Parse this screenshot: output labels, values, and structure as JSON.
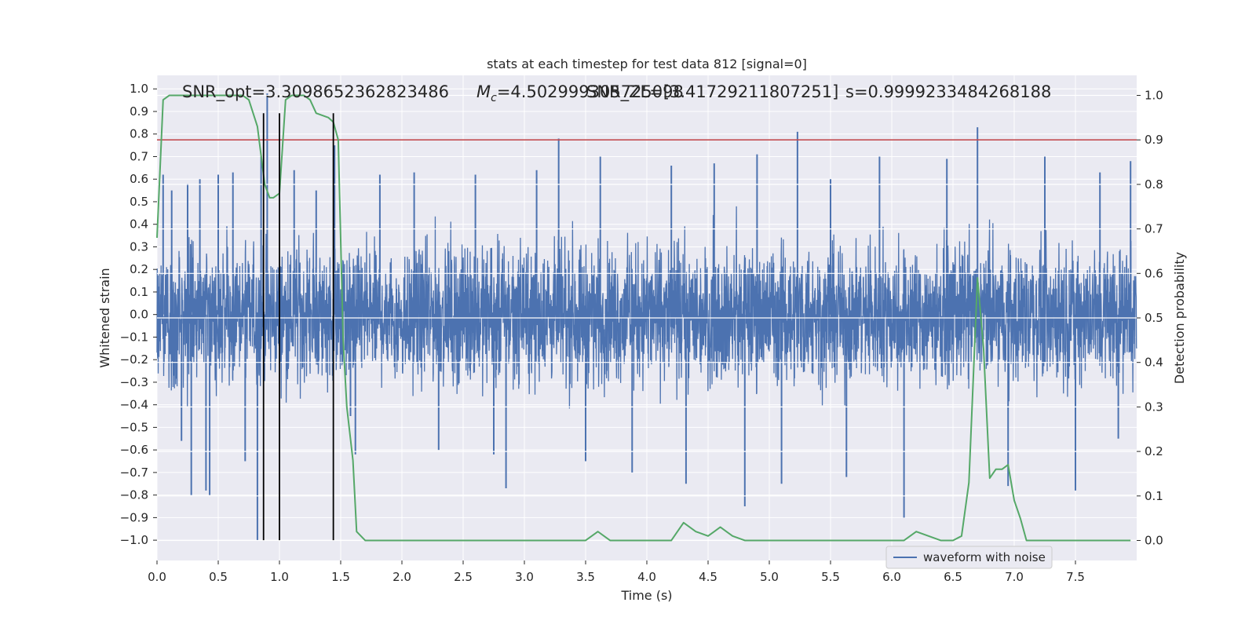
{
  "chart_data": {
    "type": "line",
    "title": "stats at each timestep for test data 812 [signal=0]",
    "xlabel": "Time (s)",
    "ylabel": "Whitened strain",
    "y2label": "Detection probability",
    "xlim": [
      0.0,
      8.0
    ],
    "ylim": [
      -1.09,
      1.06
    ],
    "y2lim": [
      -0.045,
      1.045
    ],
    "xticks": [
      0.0,
      0.5,
      1.0,
      1.5,
      2.0,
      2.5,
      3.0,
      3.5,
      4.0,
      4.5,
      5.0,
      5.5,
      6.0,
      6.5,
      7.0,
      7.5
    ],
    "xtick_labels": [
      "0.0",
      "0.5",
      "1.0",
      "1.5",
      "2.0",
      "2.5",
      "3.0",
      "3.5",
      "4.0",
      "4.5",
      "5.0",
      "5.5",
      "6.0",
      "6.5",
      "7.0",
      "7.5"
    ],
    "yticks": [
      1.0,
      0.9,
      0.8,
      0.7,
      0.6,
      0.5,
      0.4,
      0.3,
      0.2,
      0.1,
      0.0,
      -0.1,
      -0.2,
      -0.3,
      -0.4,
      -0.5,
      -0.6,
      -0.7,
      -0.8,
      -0.9,
      -1.0
    ],
    "ytick_labels": [
      "1.0",
      "0.9",
      "0.8",
      "0.7",
      "0.6",
      "0.5",
      "0.4",
      "0.3",
      "0.2",
      "0.1",
      "0.0",
      "−0.1",
      "−0.2",
      "−0.3",
      "−0.4",
      "−0.5",
      "−0.6",
      "−0.7",
      "−0.8",
      "−0.9",
      "−1.0"
    ],
    "y2ticks": [
      1.0,
      0.9,
      0.8,
      0.7,
      0.6,
      0.5,
      0.4,
      0.3,
      0.2,
      0.1,
      0.0
    ],
    "y2tick_labels": [
      "1.0",
      "0.9",
      "0.8",
      "0.7",
      "0.6",
      "0.5",
      "0.4",
      "0.3",
      "0.2",
      "0.1",
      "0.0"
    ],
    "grid": true,
    "legend": {
      "placement": "lower-right",
      "entries": [
        "waveform with noise"
      ]
    },
    "annotations": {
      "snr_opt": "SNR_opt=3.3098652362823486",
      "mc_prefix": "M",
      "mc_sub": "c",
      "mc_value": "=4.502999305725098",
      "snr_zl": "SNR_ZL=[3.41729211807251]",
      "s_value": "s=0.9999233484268188"
    },
    "waveform": {
      "name": "waveform with noise",
      "color": "#4c72b0",
      "samples": 4096,
      "core_envelope": 0.43,
      "spike_peaks": [
        [
          0.05,
          0.62
        ],
        [
          0.12,
          0.55
        ],
        [
          0.2,
          -0.56
        ],
        [
          0.25,
          0.58
        ],
        [
          0.28,
          -0.8
        ],
        [
          0.35,
          0.6
        ],
        [
          0.4,
          -0.78
        ],
        [
          0.43,
          -0.8
        ],
        [
          0.5,
          0.62
        ],
        [
          0.62,
          0.63
        ],
        [
          0.72,
          -0.65
        ],
        [
          0.82,
          -1.0
        ],
        [
          0.85,
          0.7
        ],
        [
          0.9,
          0.98
        ],
        [
          1.12,
          0.64
        ],
        [
          1.3,
          0.55
        ],
        [
          1.45,
          0.75
        ],
        [
          1.58,
          -0.45
        ],
        [
          1.62,
          -0.62
        ],
        [
          1.82,
          0.62
        ],
        [
          2.1,
          0.63
        ],
        [
          2.3,
          -0.6
        ],
        [
          2.6,
          0.62
        ],
        [
          2.75,
          -0.62
        ],
        [
          2.85,
          -0.77
        ],
        [
          3.1,
          0.64
        ],
        [
          3.28,
          0.78
        ],
        [
          3.5,
          -0.65
        ],
        [
          3.62,
          0.7
        ],
        [
          3.88,
          -0.7
        ],
        [
          4.2,
          0.66
        ],
        [
          4.32,
          -0.75
        ],
        [
          4.55,
          0.67
        ],
        [
          4.8,
          -0.85
        ],
        [
          4.9,
          0.71
        ],
        [
          5.1,
          -0.75
        ],
        [
          5.23,
          0.81
        ],
        [
          5.5,
          0.6
        ],
        [
          5.63,
          -0.72
        ],
        [
          5.9,
          0.7
        ],
        [
          6.1,
          -0.9
        ],
        [
          6.45,
          0.69
        ],
        [
          6.7,
          0.83
        ],
        [
          6.95,
          -0.76
        ],
        [
          7.25,
          0.7
        ],
        [
          7.5,
          -0.78
        ],
        [
          7.7,
          0.63
        ],
        [
          7.85,
          -0.55
        ],
        [
          7.95,
          0.68
        ]
      ]
    },
    "probability": {
      "color": "#55a868",
      "x": [
        0.0,
        0.05,
        0.1,
        0.2,
        0.4,
        0.6,
        0.7,
        0.75,
        0.82,
        0.88,
        0.92,
        0.95,
        1.0,
        1.05,
        1.1,
        1.15,
        1.2,
        1.25,
        1.3,
        1.4,
        1.44,
        1.48,
        1.52,
        1.55,
        1.6,
        1.63,
        1.7,
        1.8,
        1.9,
        2.0,
        2.2,
        2.3,
        2.4,
        2.6,
        2.8,
        3.0,
        3.2,
        3.4,
        3.5,
        3.55,
        3.6,
        3.65,
        3.7,
        3.8,
        3.9,
        4.0,
        4.1,
        4.2,
        4.3,
        4.4,
        4.5,
        4.55,
        4.6,
        4.65,
        4.7,
        4.8,
        4.9,
        5.0,
        5.2,
        5.4,
        5.6,
        5.8,
        6.0,
        6.1,
        6.15,
        6.2,
        6.3,
        6.4,
        6.5,
        6.57,
        6.63,
        6.7,
        6.75,
        6.8,
        6.85,
        6.9,
        6.95,
        7.0,
        7.05,
        7.1,
        7.3,
        7.5,
        7.7,
        7.9,
        7.95
      ],
      "y": [
        0.68,
        0.99,
        1.0,
        1.0,
        1.0,
        1.0,
        1.0,
        0.99,
        0.93,
        0.8,
        0.77,
        0.77,
        0.78,
        0.99,
        1.0,
        1.0,
        1.0,
        0.99,
        0.96,
        0.95,
        0.94,
        0.9,
        0.45,
        0.3,
        0.18,
        0.02,
        0.0,
        0.0,
        0.0,
        0.0,
        0.0,
        0.0,
        0.0,
        0.0,
        0.0,
        0.0,
        0.0,
        0.0,
        0.0,
        0.01,
        0.02,
        0.01,
        0.0,
        0.0,
        0.0,
        0.0,
        0.0,
        0.0,
        0.04,
        0.02,
        0.01,
        0.02,
        0.03,
        0.02,
        0.01,
        0.0,
        0.0,
        0.0,
        0.0,
        0.0,
        0.0,
        0.0,
        0.0,
        0.0,
        0.01,
        0.02,
        0.01,
        0.0,
        0.0,
        0.01,
        0.13,
        0.59,
        0.43,
        0.14,
        0.16,
        0.16,
        0.17,
        0.09,
        0.05,
        0.0,
        0.0,
        0.0,
        0.0,
        0.0,
        0.0
      ]
    },
    "threshold": {
      "value": 0.9,
      "axis": "right",
      "color": "#c44e52"
    },
    "vlines": {
      "x": [
        0.87,
        1.0,
        1.44
      ],
      "ymin": -1.0,
      "ymax": 0.96,
      "color": "#000000"
    }
  }
}
